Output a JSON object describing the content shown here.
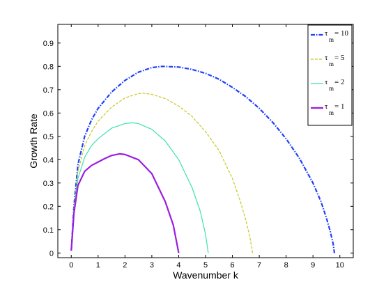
{
  "chart_data": {
    "type": "line",
    "xlabel": "Wavenumber k",
    "ylabel": "Growth Rate",
    "xlim": [
      -0.5,
      10.5
    ],
    "ylim": [
      -0.02,
      0.98
    ],
    "xticks": [
      0,
      1,
      2,
      3,
      4,
      5,
      6,
      7,
      8,
      9,
      10
    ],
    "yticks": [
      0,
      0.1,
      0.2,
      0.3,
      0.4,
      0.5,
      0.6,
      0.7,
      0.8,
      0.9
    ],
    "ytick_labels": [
      "0",
      "0.1",
      "0.2",
      "0.3",
      "0.4",
      "0.5",
      "0.6",
      "0.7",
      "0.8",
      "0.9"
    ],
    "grid": false,
    "legend_position": "top-right",
    "series": [
      {
        "name": "τm = 10",
        "legend_main": "τ",
        "legend_sub": "m",
        "legend_value": "= 10",
        "color": "#1f3fff",
        "style": "dashdot",
        "x": [
          0,
          0.1,
          0.25,
          0.5,
          0.75,
          1,
          1.5,
          2,
          2.5,
          3,
          3.4,
          4,
          4.5,
          5,
          5.5,
          6,
          6.5,
          7,
          7.5,
          8,
          8.5,
          9,
          9.3,
          9.5,
          9.65,
          9.75,
          9.8
        ],
        "y": [
          0.01,
          0.2,
          0.38,
          0.5,
          0.57,
          0.62,
          0.69,
          0.74,
          0.775,
          0.795,
          0.8,
          0.797,
          0.787,
          0.77,
          0.745,
          0.71,
          0.67,
          0.62,
          0.56,
          0.49,
          0.405,
          0.3,
          0.22,
          0.15,
          0.09,
          0.04,
          0.0
        ]
      },
      {
        "name": "τm = 5",
        "legend_main": "τ",
        "legend_sub": "m",
        "legend_value": "= 5",
        "color": "#c8c81e",
        "style": "dashed",
        "x": [
          0,
          0.1,
          0.25,
          0.5,
          0.75,
          1,
          1.5,
          2,
          2.5,
          2.7,
          3,
          3.5,
          4,
          4.5,
          5,
          5.5,
          6,
          6.3,
          6.5,
          6.65,
          6.75
        ],
        "y": [
          0.01,
          0.19,
          0.35,
          0.46,
          0.52,
          0.565,
          0.625,
          0.665,
          0.683,
          0.685,
          0.68,
          0.662,
          0.63,
          0.585,
          0.52,
          0.44,
          0.32,
          0.22,
          0.14,
          0.07,
          0.0
        ]
      },
      {
        "name": "τm = 2",
        "legend_main": "τ",
        "legend_sub": "m",
        "legend_value": "= 2",
        "color": "#3ee0b4",
        "style": "solid",
        "x": [
          0,
          0.1,
          0.25,
          0.5,
          0.75,
          1,
          1.5,
          2,
          2.3,
          2.5,
          3,
          3.5,
          4,
          4.5,
          4.8,
          5,
          5.1
        ],
        "y": [
          0.01,
          0.18,
          0.32,
          0.41,
          0.46,
          0.49,
          0.535,
          0.555,
          0.558,
          0.555,
          0.53,
          0.48,
          0.4,
          0.28,
          0.18,
          0.08,
          0.0
        ]
      },
      {
        "name": "τm = 1",
        "legend_main": "τ",
        "legend_sub": "m",
        "legend_value": "= 1",
        "color": "#9a1ee0",
        "style": "solid-thick",
        "x": [
          0,
          0.1,
          0.25,
          0.5,
          0.75,
          1,
          1.25,
          1.5,
          1.8,
          2,
          2.5,
          3,
          3.5,
          3.8,
          4.0
        ],
        "y": [
          0.01,
          0.17,
          0.29,
          0.35,
          0.375,
          0.39,
          0.405,
          0.418,
          0.425,
          0.422,
          0.4,
          0.34,
          0.22,
          0.12,
          0.0
        ]
      }
    ]
  }
}
